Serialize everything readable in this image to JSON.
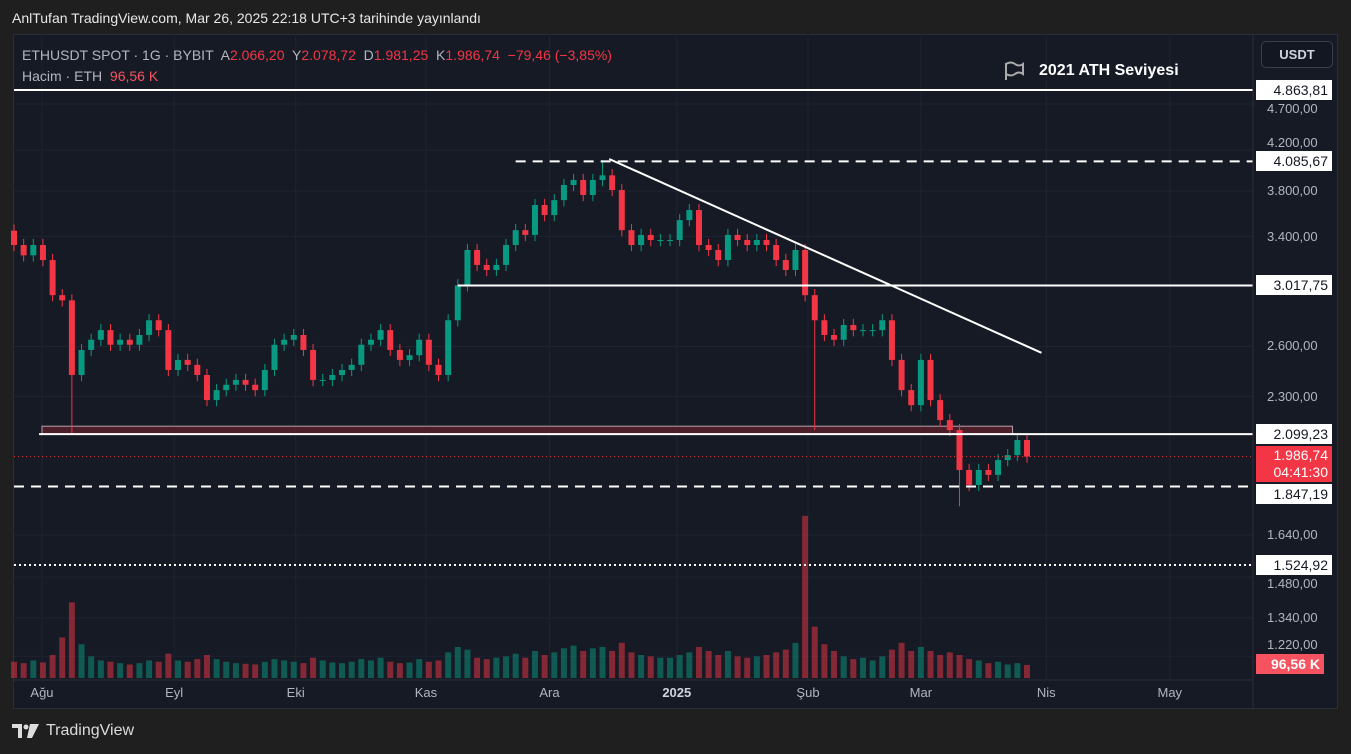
{
  "header": {
    "published": "AnlTufan TradingView.com, Mar 26, 2025 22:18 UTC+3 tarihinde yayınlandı"
  },
  "legend": {
    "symbol": "ETHUSDT SPOT · 1G · BYBIT",
    "open_label": "A",
    "open": "2.066,20",
    "high_label": "Y",
    "high": "2.078,72",
    "low_label": "D",
    "low": "1.981,25",
    "close_label": "K",
    "close": "1.986,74",
    "change": "−79,46 (−3,85%)",
    "volume_label": "Hacim · ETH",
    "volume": "96,56 K"
  },
  "currency_button": "USDT",
  "annotation": "2021 ATH Seviyesi",
  "current_price": {
    "price": "1.986,74",
    "countdown": "04:41:30"
  },
  "volume_badge": "96,56 K",
  "footer": {
    "brand": "TradingView"
  },
  "colors": {
    "up": "#089981",
    "down": "#f23645",
    "bg": "#161a25",
    "zone": "#5a1f2a"
  },
  "chart_data": {
    "type": "candlestick",
    "title": "ETHUSDT SPOT · 1G · BYBIT",
    "scale": "log",
    "ylim": [
      1157,
      5577
    ],
    "y_ticks": [
      "4.700,00",
      "4.200,00",
      "3.800,00",
      "3.400,00",
      "2.600,00",
      "2.300,00",
      "1.640,00",
      "1.480,00",
      "1.340,00",
      "1.220,00"
    ],
    "y_tick_values": [
      4700,
      4200,
      3800,
      3400,
      2600,
      2300,
      1640,
      1480,
      1340,
      1220
    ],
    "x_ticks": [
      {
        "label": "Ağu",
        "index": 2.9
      },
      {
        "label": "Eyl",
        "index": 16.6
      },
      {
        "label": "Eki",
        "index": 29.2
      },
      {
        "label": "Kas",
        "index": 42.7
      },
      {
        "label": "Ara",
        "index": 55.5
      },
      {
        "label": "2025",
        "index": 68.7
      },
      {
        "label": "Şub",
        "index": 82.3
      },
      {
        "label": "Mar",
        "index": 94.0
      },
      {
        "label": "Nis",
        "index": 107.0
      },
      {
        "label": "May",
        "index": 119.8
      }
    ],
    "closes": [
      3331,
      3248,
      3331,
      3211,
      2947,
      2910,
      2425,
      2578,
      2643,
      2706,
      2611,
      2643,
      2611,
      2674,
      2772,
      2706,
      2455,
      2516,
      2486,
      2425,
      2281,
      2337,
      2368,
      2396,
      2368,
      2337,
      2455,
      2611,
      2643,
      2674,
      2578,
      2396,
      2396,
      2425,
      2455,
      2486,
      2611,
      2643,
      2706,
      2578,
      2516,
      2545,
      2643,
      2486,
      2425,
      2772,
      3019,
      3291,
      3173,
      3134,
      3173,
      3331,
      3454,
      3414,
      3673,
      3584,
      3717,
      3857,
      3904,
      3764,
      3904,
      3949,
      3810,
      3454,
      3331,
      3414,
      3372,
      3372,
      3372,
      3540,
      3628,
      3331,
      3291,
      3211,
      3414,
      3372,
      3331,
      3372,
      3331,
      3211,
      3134,
      3291,
      2947,
      2772,
      2674,
      2643,
      2740,
      2706,
      2706,
      2706,
      2772,
      2516,
      2337,
      2253,
      2516,
      2281,
      2172,
      2120,
      1923,
      1854,
      1923,
      1900,
      1970,
      1994,
      2069,
      1987
    ],
    "first_open": 3450,
    "wicks": [
      {
        "index": 6,
        "low": 2100
      },
      {
        "index": 83,
        "low": 2120
      },
      {
        "index": 98,
        "low": 1760
      },
      {
        "index": 61,
        "high": 4100
      }
    ],
    "volumes_k": [
      120,
      110,
      130,
      115,
      170,
      300,
      560,
      250,
      160,
      130,
      120,
      110,
      100,
      110,
      130,
      120,
      180,
      130,
      120,
      140,
      170,
      140,
      120,
      110,
      105,
      100,
      120,
      140,
      130,
      120,
      110,
      150,
      130,
      115,
      110,
      120,
      140,
      130,
      150,
      120,
      110,
      115,
      140,
      120,
      130,
      190,
      230,
      210,
      150,
      140,
      150,
      160,
      180,
      150,
      200,
      170,
      190,
      220,
      240,
      200,
      220,
      230,
      200,
      260,
      190,
      170,
      160,
      150,
      150,
      170,
      190,
      230,
      200,
      170,
      200,
      160,
      150,
      160,
      170,
      190,
      210,
      260,
      1200,
      380,
      250,
      200,
      160,
      140,
      150,
      130,
      160,
      210,
      260,
      200,
      230,
      200,
      170,
      190,
      170,
      140,
      130,
      110,
      120,
      100,
      110,
      97
    ],
    "levels": [
      {
        "label": "4.863,81",
        "value": 4863.81,
        "style": "solid",
        "from_index": 0
      },
      {
        "label": "4.085,67",
        "value": 4085.67,
        "style": "dashed",
        "from_index": 52
      },
      {
        "label": "3.017,75",
        "value": 3017.75,
        "style": "solid",
        "from_index": 46
      },
      {
        "label": "2.099,23",
        "value": 2099.23,
        "style": "solid",
        "from_index": 2.6
      },
      {
        "label": "1.847,19",
        "value": 1847.19,
        "style": "dashed",
        "from_index": 0
      },
      {
        "label": "1.524,92",
        "value": 1524.92,
        "style": "dotted",
        "from_index": 0
      }
    ],
    "zone": {
      "from_index": 2.9,
      "to_index": 103.5,
      "top": 2140,
      "bottom": 2100
    },
    "trendline": {
      "from": {
        "index": 61.7,
        "price": 4110
      },
      "to": {
        "index": 106.5,
        "price": 2560
      }
    }
  }
}
